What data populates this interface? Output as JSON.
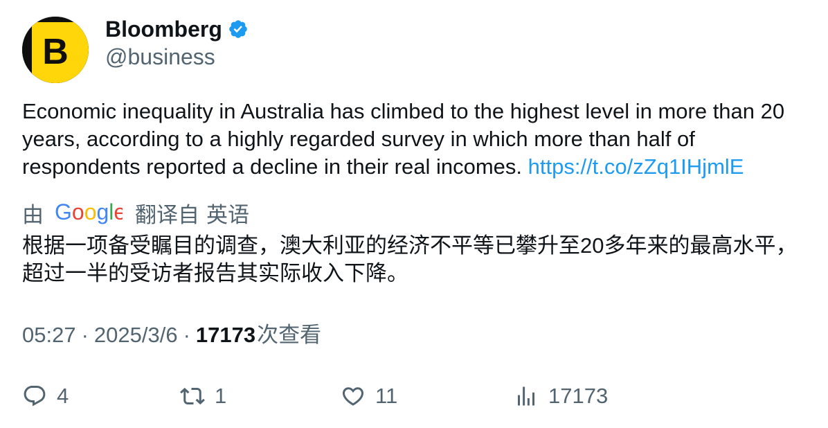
{
  "author": {
    "display_name": "Bloomberg",
    "handle": "@business",
    "avatar_letter": "B",
    "verified": true
  },
  "tweet": {
    "text": "Economic inequality in Australia has climbed to the highest level in more than 20 years, according to a highly regarded survey in which more than half of respondents reported a decline in their real incomes. ",
    "link": "https://t.co/zZq1IHjmlE"
  },
  "translation": {
    "by": "由",
    "provider": "Google",
    "from_text": "翻译自",
    "language": "英语",
    "text": "根据一项备受瞩目的调查，澳大利亚的经济不平等已攀升至20多年来的最高水平，超过一半的受访者报告其实际收入下降。"
  },
  "meta": {
    "time": "05:27",
    "separator": "·",
    "date": "2025/3/6",
    "views": "17173",
    "views_label": "次查看"
  },
  "actions": {
    "replies": "4",
    "reposts": "1",
    "likes": "11",
    "views": "17173"
  },
  "colors": {
    "text": "#0f1419",
    "secondary": "#536471",
    "link": "#1d9bf0",
    "verified": "#1d9bf0",
    "avatar_yellow": "#ffd60a"
  },
  "icons": {
    "verified": "verified-badge-icon",
    "reply": "reply-icon",
    "repost": "repost-icon",
    "like": "like-icon",
    "views": "views-icon"
  }
}
